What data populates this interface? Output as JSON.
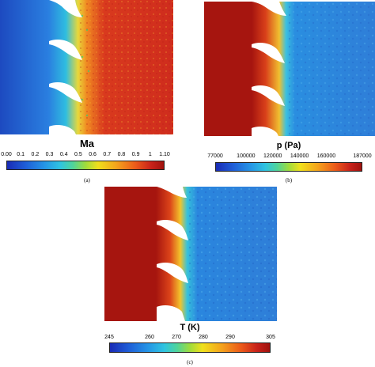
{
  "panels": [
    {
      "id": "a",
      "colorbar_title": "Ma",
      "ticks": [
        "0.00",
        "0.1",
        "0.2",
        "0.3",
        "0.4",
        "0.5",
        "0.6",
        "0.7",
        "0.8",
        "0.9",
        "1",
        "1.10"
      ],
      "caption": "(a)",
      "colormap": "rainbow"
    },
    {
      "id": "b",
      "colorbar_title": "p (Pa)",
      "ticks": [
        "77000",
        "100000",
        "120000",
        "140000",
        "160000",
        "187000"
      ],
      "caption": "(b)",
      "colormap": "rainbow"
    },
    {
      "id": "c",
      "colorbar_title": "T (K)",
      "ticks": [
        "245",
        "260",
        "270",
        "280",
        "290",
        "305"
      ],
      "caption": "(c)",
      "colormap": "rainbow"
    }
  ],
  "colors": {
    "deep_blue": "#1a3fb0",
    "cyan": "#1fb3e0",
    "green": "#6fd44a",
    "yellow": "#f2e21f",
    "orange": "#f2861c",
    "red": "#d0281e",
    "dark_red": "#a3140f",
    "blade": "#ffffff"
  }
}
